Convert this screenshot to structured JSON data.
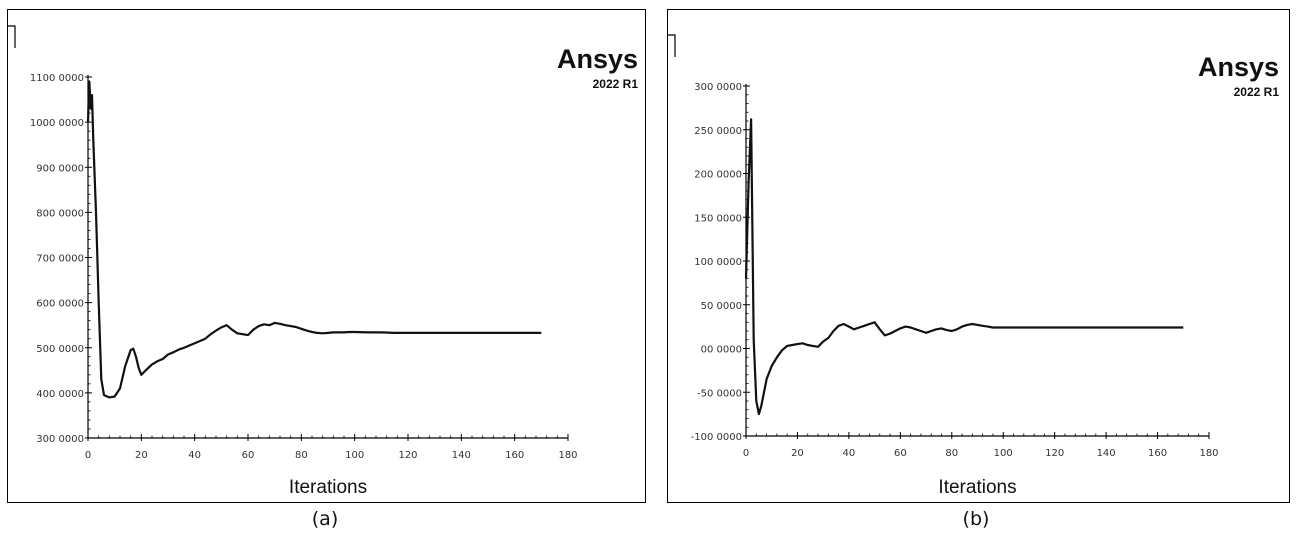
{
  "brand": {
    "name": "Ansys",
    "version": "2022 R1"
  },
  "chart_data": [
    {
      "type": "line",
      "caption": "(a)",
      "xlabel": "Iterations",
      "ylabel": "",
      "xlim": [
        0,
        180
      ],
      "ylim": [
        300,
        1100
      ],
      "xticks": [
        0,
        20,
        40,
        60,
        80,
        100,
        120,
        140,
        160,
        180
      ],
      "yticks": [
        300,
        400,
        500,
        600,
        700,
        800,
        900,
        1000,
        1100
      ],
      "xtick_labels": [
        "0",
        "20",
        "40",
        "60",
        "80",
        "100",
        "120",
        "140",
        "160",
        "180"
      ],
      "ytick_labels": [
        "300 0000",
        "400 0000",
        "500 0000",
        "600 0000",
        "700 0000",
        "800 0000",
        "900 0000",
        "1000 0000",
        "1100 0000"
      ],
      "grid": false,
      "series": [
        {
          "x": [
            0,
            0.5,
            1,
            1.5,
            2,
            3,
            4,
            5,
            6,
            8,
            10,
            12,
            14,
            16,
            17,
            18,
            19,
            20,
            22,
            24,
            26,
            28,
            30,
            32,
            34,
            36,
            38,
            40,
            42,
            44,
            46,
            48,
            50,
            52,
            54,
            56,
            58,
            60,
            62,
            64,
            66,
            68,
            70,
            72,
            74,
            76,
            78,
            80,
            82,
            84,
            86,
            88,
            90,
            92,
            94,
            96,
            98,
            100,
            105,
            110,
            115,
            120,
            125,
            130,
            135,
            140,
            145,
            150,
            155,
            160,
            165,
            170
          ],
          "y": [
            1000,
            1090,
            1030,
            1060,
            960,
            800,
            600,
            430,
            395,
            390,
            392,
            410,
            460,
            495,
            498,
            480,
            455,
            440,
            452,
            463,
            470,
            475,
            485,
            490,
            496,
            500,
            505,
            510,
            515,
            520,
            530,
            538,
            545,
            550,
            540,
            532,
            530,
            528,
            540,
            548,
            552,
            550,
            555,
            553,
            550,
            548,
            546,
            542,
            538,
            535,
            533,
            532,
            533,
            534,
            534,
            534,
            535,
            535,
            534,
            534,
            533,
            533,
            533,
            533,
            533,
            533,
            533,
            533,
            533,
            533,
            533,
            533
          ]
        }
      ]
    },
    {
      "type": "line",
      "caption": "(b)",
      "xlabel": "Iterations",
      "ylabel": "",
      "xlim": [
        0,
        180
      ],
      "ylim": [
        -100,
        300
      ],
      "xticks": [
        0,
        20,
        40,
        60,
        80,
        100,
        120,
        140,
        160,
        180
      ],
      "yticks": [
        -100,
        -50,
        0,
        50,
        100,
        150,
        200,
        250,
        300
      ],
      "xtick_labels": [
        "0",
        "20",
        "40",
        "60",
        "80",
        "100",
        "120",
        "140",
        "160",
        "180"
      ],
      "ytick_labels": [
        "-100 0000",
        "-50 0000",
        "00 0000",
        "50 0000",
        "100 0000",
        "150 0000",
        "200 0000",
        "250 0000",
        "300 0000"
      ],
      "grid": false,
      "series": [
        {
          "x": [
            0,
            1,
            2,
            3,
            4,
            5,
            6,
            8,
            10,
            12,
            14,
            16,
            18,
            20,
            22,
            24,
            26,
            28,
            30,
            32,
            34,
            36,
            38,
            40,
            42,
            44,
            46,
            48,
            50,
            52,
            54,
            56,
            58,
            60,
            62,
            64,
            66,
            68,
            70,
            72,
            74,
            76,
            78,
            80,
            82,
            84,
            86,
            88,
            90,
            92,
            94,
            96,
            98,
            100,
            110,
            120,
            130,
            140,
            150,
            160,
            170
          ],
          "y": [
            80,
            190,
            262,
            10,
            -60,
            -75,
            -65,
            -35,
            -20,
            -10,
            -2,
            3,
            4,
            5,
            6,
            4,
            3,
            2,
            8,
            12,
            20,
            26,
            28,
            25,
            22,
            24,
            26,
            28,
            30,
            22,
            15,
            17,
            20,
            23,
            25,
            24,
            22,
            20,
            18,
            20,
            22,
            23,
            21,
            20,
            22,
            25,
            27,
            28,
            27,
            26,
            25,
            24,
            24,
            24,
            24,
            24,
            24,
            24,
            24,
            24,
            24
          ]
        }
      ]
    }
  ]
}
